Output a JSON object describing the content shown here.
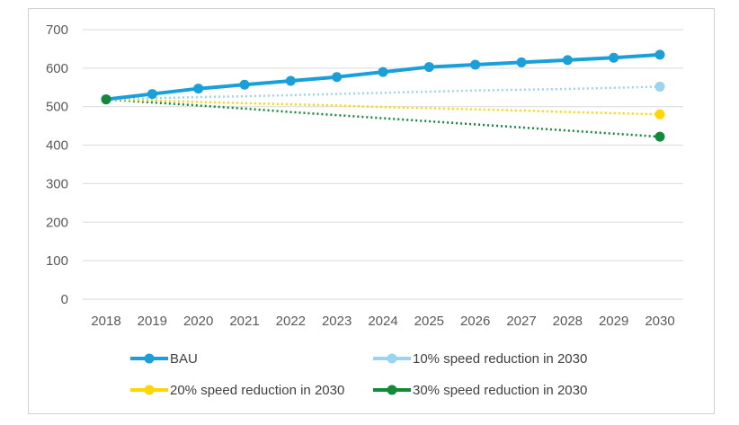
{
  "chart_data": {
    "type": "line",
    "x": [
      "2018",
      "2019",
      "2020",
      "2021",
      "2022",
      "2023",
      "2024",
      "2025",
      "2026",
      "2027",
      "2028",
      "2029",
      "2030"
    ],
    "ylim": [
      0,
      700
    ],
    "yticks": [
      "0",
      "100",
      "200",
      "300",
      "400",
      "500",
      "600",
      "700"
    ],
    "grid": true,
    "legend_position": "bottom",
    "series": [
      {
        "name": "BAU",
        "color": "#1aa0d8",
        "style": "solid-markers",
        "values": [
          519,
          533,
          547,
          557,
          567,
          577,
          590,
          603,
          609,
          615,
          621,
          627,
          635
        ]
      },
      {
        "name": "10% speed reduction in 2030",
        "color": "#9cd3f0",
        "style": "dotted-endpoints",
        "values": [
          519,
          522,
          525,
          527,
          530,
          533,
          536,
          539,
          542,
          544,
          546,
          549,
          552
        ]
      },
      {
        "name": "20% speed reduction in 2030",
        "color": "#ffd700",
        "style": "dotted-endpoints",
        "values": [
          519,
          516,
          512,
          509,
          506,
          503,
          499,
          496,
          493,
          490,
          486,
          483,
          480
        ]
      },
      {
        "name": "30% speed reduction in 2030",
        "color": "#118a3a",
        "style": "dotted-endpoints",
        "values": [
          519,
          511,
          503,
          495,
          486,
          478,
          470,
          462,
          454,
          446,
          438,
          430,
          422
        ]
      }
    ]
  }
}
